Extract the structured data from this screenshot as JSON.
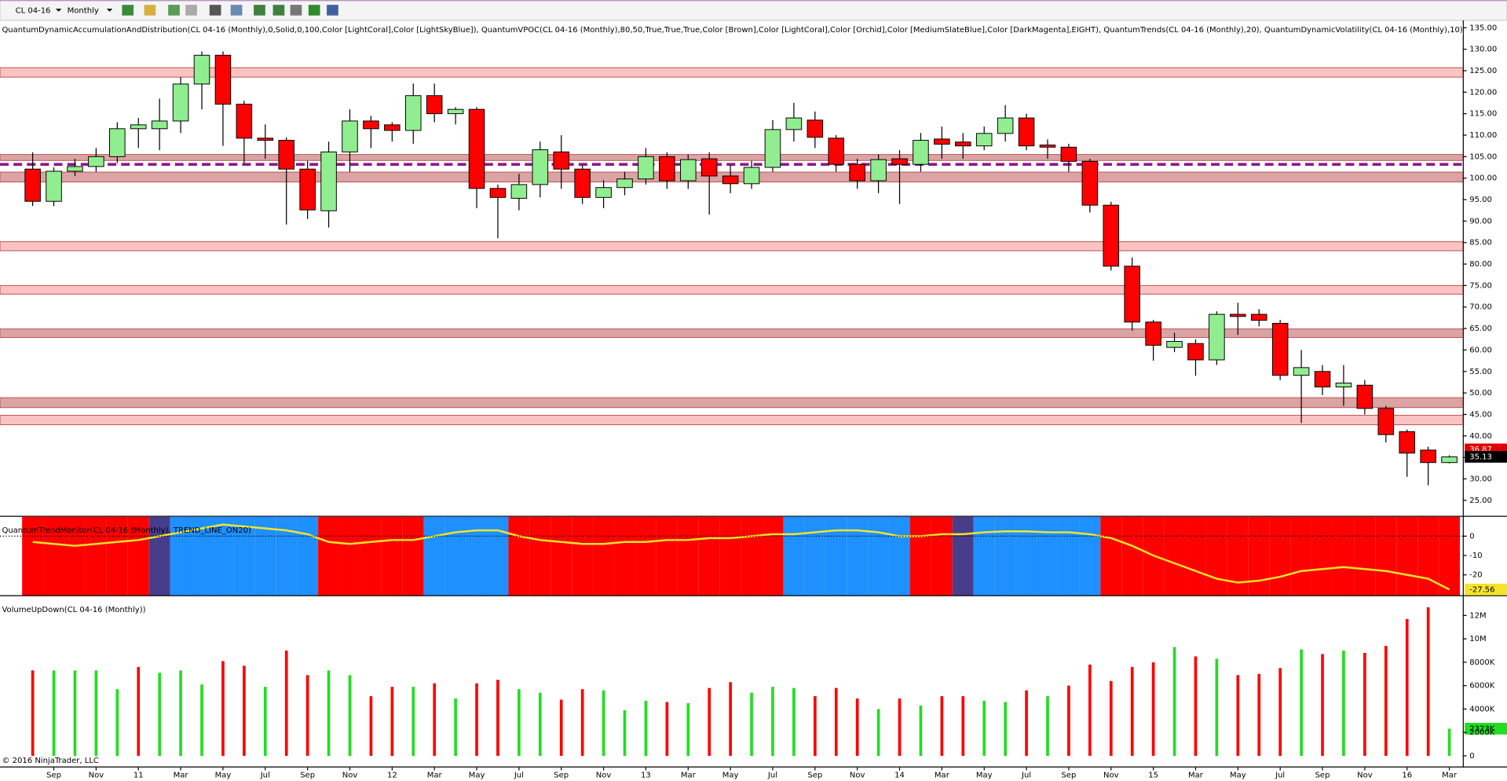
{
  "toolbar": {
    "instrument": "CL 04-16",
    "period": "Monthly"
  },
  "copyright": "© 2016 NinjaTrader, LLC",
  "chart_data": [
    {
      "type": "candlestick",
      "title": "QuantumDynamicAccumulationAndDistribution(CL 04-16 (Monthly),0,Solid,0,100,Color [LightCoral],Color [LightSkyBlue]), QuantumVPOC(CL 04-16 (Monthly),80,50,True,True,True,Color [Brown],Color [LightCoral],Color [Orchid],Color [MediumSlateBlue],Color [DarkMagenta],EIGHT), QuantumTrends(CL 04-16 (Monthly),20), QuantumDynamicVolatility(CL 04-16 (Monthly),10)",
      "categories": [
        null,
        "Sep",
        null,
        "Nov",
        null,
        "11",
        null,
        "Mar",
        null,
        "May",
        null,
        "Jul",
        null,
        "Sep",
        null,
        "Nov",
        null,
        "12",
        null,
        "Mar",
        null,
        "May",
        null,
        "Jul",
        null,
        "Sep",
        null,
        "Nov",
        null,
        "13",
        null,
        "Mar",
        null,
        "May",
        null,
        "Jul",
        null,
        "Sep",
        null,
        "Nov",
        null,
        "14",
        null,
        "Mar",
        null,
        "May",
        null,
        "Jul",
        null,
        "Sep",
        null,
        "Nov",
        null,
        "15",
        null,
        "Mar",
        null,
        "May",
        null,
        "Jul",
        null,
        "Sep",
        null,
        "Nov",
        null,
        "16",
        null,
        "Mar"
      ],
      "open": [
        102.1,
        94.6,
        101.6,
        102.7,
        105,
        111.5,
        111.5,
        113.3,
        121.9,
        128.6,
        117.2,
        109.3,
        108.8,
        102.1,
        92.4,
        106.1,
        113.3,
        112.4,
        111.1,
        119.2,
        115,
        116,
        97.6,
        95.3,
        98.5,
        106.1,
        102.1,
        95.5,
        97.8,
        99.8,
        105,
        99.4,
        104.5,
        100.5,
        98.7,
        102.5,
        111.3,
        113.5,
        109.3,
        103.2,
        99.4,
        104.5,
        103.2,
        109.1,
        108.4,
        107.5,
        110.4,
        114,
        107.7,
        107.2,
        103.9,
        93.7,
        79.5,
        66.5,
        60.6,
        61.5,
        57.7,
        68.3,
        68.3,
        66.2,
        54.1,
        55,
        51.4,
        51.8,
        46.4,
        41,
        36.7,
        33.8
      ],
      "high": [
        106,
        102.5,
        104.5,
        107,
        113,
        114,
        118.5,
        123.5,
        129.5,
        129.5,
        118,
        112.5,
        109.5,
        104,
        108.5,
        116,
        114.5,
        113,
        122,
        122,
        116.5,
        116.5,
        98.5,
        101,
        108.5,
        110,
        103,
        99.5,
        101.5,
        107,
        106,
        105.5,
        106,
        103,
        104,
        113.5,
        117.5,
        115.5,
        110,
        104.5,
        105.5,
        106.5,
        110.5,
        112,
        110.5,
        112,
        117,
        115,
        109,
        108,
        104.5,
        94.5,
        81.5,
        67,
        64,
        62.5,
        69,
        71,
        69.5,
        67,
        60,
        56.5,
        56.5,
        53,
        47,
        41.5,
        37.5,
        35.5
      ],
      "low": [
        93.5,
        93.5,
        100.5,
        101.5,
        103.5,
        107,
        106.5,
        110.5,
        116,
        107.5,
        103.5,
        104.5,
        89.2,
        90.5,
        88.5,
        101.5,
        107,
        108.5,
        108,
        113,
        112.5,
        93,
        86,
        92.5,
        95.5,
        97.5,
        94,
        93,
        96,
        98.5,
        97.5,
        97.5,
        91.5,
        96.5,
        97.5,
        101.5,
        108.5,
        107,
        101.5,
        97.5,
        96.5,
        94,
        101.5,
        104.5,
        104.5,
        106.5,
        108.5,
        106.5,
        104.5,
        101.5,
        92,
        78.5,
        64.5,
        57.5,
        59.5,
        54,
        56.5,
        63.5,
        65.5,
        53,
        43,
        49.5,
        47,
        45,
        38.5,
        30.5,
        28.5,
        33.6
      ],
      "close": [
        94.6,
        101.6,
        102.7,
        105,
        111.5,
        112.4,
        113.3,
        121.9,
        128.6,
        117.2,
        109.3,
        108.8,
        102.1,
        92.6,
        106.1,
        113.3,
        111.5,
        111.1,
        119.2,
        115,
        116,
        97.6,
        95.5,
        98.5,
        106.6,
        102.1,
        95.5,
        97.8,
        99.8,
        105,
        99.4,
        104.3,
        100.5,
        98.7,
        102.5,
        111.3,
        114,
        109.5,
        103.2,
        99.4,
        104.3,
        103.2,
        108.8,
        107.9,
        107.5,
        110.4,
        114,
        107.5,
        107.2,
        103.9,
        93.7,
        79.5,
        66.5,
        61.1,
        62,
        57.7,
        68.3,
        67.8,
        66.9,
        54.1,
        55.9,
        51.4,
        52.3,
        46.4,
        40.3,
        36,
        33.8,
        35.13
      ],
      "up_color": "#90ee90",
      "down_color": "#ff0000",
      "zones": [
        {
          "low": 123.5,
          "high": 125.7,
          "color": "#f8b8b8"
        },
        {
          "low": 104.1,
          "high": 105.5,
          "color": "#d49494"
        },
        {
          "low": 99.1,
          "high": 101.4,
          "color": "#d49494"
        },
        {
          "low": 83.1,
          "high": 85.2,
          "color": "#f8b8b8"
        },
        {
          "low": 73,
          "high": 75,
          "color": "#f8b8b8"
        },
        {
          "low": 62.9,
          "high": 64.9,
          "color": "#d49494"
        },
        {
          "low": 46.6,
          "high": 48.9,
          "color": "#d49494"
        },
        {
          "low": 42.6,
          "high": 44.8,
          "color": "#f8b8b8"
        }
      ],
      "vpoc": 103.2,
      "vpoc_color": "#8b1a8b",
      "markers": [
        36.87
      ],
      "marker_color": "#e00000",
      "ylim": [
        21.4,
        136.5
      ],
      "yticks": [
        {
          "value": 25,
          "label": "25.00"
        },
        {
          "value": 30,
          "label": "30.00"
        },
        {
          "value": 35,
          "label": "35.00"
        },
        {
          "value": 40,
          "label": "40.00"
        },
        {
          "value": 45,
          "label": "45.00"
        },
        {
          "value": 50,
          "label": "50.00"
        },
        {
          "value": 55,
          "label": "55.00"
        },
        {
          "value": 60,
          "label": "60.00"
        },
        {
          "value": 65,
          "label": "65.00"
        },
        {
          "value": 70,
          "label": "70.00"
        },
        {
          "value": 75,
          "label": "75.00"
        },
        {
          "value": 80,
          "label": "80.00"
        },
        {
          "value": 85,
          "label": "85.00"
        },
        {
          "value": 90,
          "label": "90.00"
        },
        {
          "value": 95,
          "label": "95.00"
        },
        {
          "value": 100,
          "label": "100.00"
        },
        {
          "value": 105,
          "label": "105.00"
        },
        {
          "value": 110,
          "label": "110.00"
        },
        {
          "value": 115,
          "label": "115.00"
        },
        {
          "value": 120,
          "label": "120.00"
        },
        {
          "value": 125,
          "label": "125.00"
        },
        {
          "value": 130,
          "label": "130.00"
        },
        {
          "value": 135,
          "label": "135.00"
        }
      ]
    },
    {
      "type": "line",
      "title": "QuantumTrendMonitor(CL 04-16 (Monthly), TREND_LINE_ON20)",
      "values": [
        -3,
        -4,
        -5,
        -4,
        -3,
        -2,
        0,
        2,
        4,
        6,
        5,
        4,
        3,
        1,
        -3,
        -4,
        -3,
        -2,
        -2,
        0,
        2,
        3,
        3,
        0,
        -2,
        -3,
        -4,
        -4,
        -3,
        -3,
        -2,
        -2,
        -1,
        -1,
        0,
        1,
        1,
        2,
        3,
        3,
        2,
        0,
        0,
        1,
        1,
        2,
        2.5,
        2.5,
        2,
        2,
        1,
        -1,
        -5,
        -10,
        -14,
        -18,
        -22,
        -24,
        -23,
        -21,
        -18,
        -17,
        -16,
        -17,
        -18,
        -20,
        -22,
        -27.56
      ],
      "color": "#f5e42a",
      "bar_colors": [
        "#ff0000",
        "#ff0000",
        "#ff0000",
        "#ff0000",
        "#ff0000",
        "#ff0000",
        "#483d8b",
        "#1e90ff",
        "#1e90ff",
        "#1e90ff",
        "#1e90ff",
        "#1e90ff",
        "#1e90ff",
        "#1e90ff",
        "#ff0000",
        "#ff0000",
        "#ff0000",
        "#ff0000",
        "#ff0000",
        "#1e90ff",
        "#1e90ff",
        "#1e90ff",
        "#1e90ff",
        "#ff0000",
        "#ff0000",
        "#ff0000",
        "#ff0000",
        "#ff0000",
        "#ff0000",
        "#ff0000",
        "#ff0000",
        "#ff0000",
        "#ff0000",
        "#ff0000",
        "#ff0000",
        "#ff0000",
        "#1e90ff",
        "#1e90ff",
        "#1e90ff",
        "#1e90ff",
        "#1e90ff",
        "#1e90ff",
        "#ff0000",
        "#ff0000",
        "#483d8b",
        "#1e90ff",
        "#1e90ff",
        "#1e90ff",
        "#1e90ff",
        "#1e90ff",
        "#1e90ff",
        "#ff0000",
        "#ff0000",
        "#ff0000",
        "#ff0000",
        "#ff0000",
        "#ff0000",
        "#ff0000",
        "#ff0000",
        "#ff0000",
        "#ff0000",
        "#ff0000",
        "#ff0000",
        "#ff0000",
        "#ff0000",
        "#ff0000",
        "#ff0000",
        "#ff0000"
      ],
      "ylim": [
        -30.5,
        10
      ],
      "yticks": [
        0,
        -10,
        -20
      ]
    },
    {
      "type": "bar",
      "title": "VolumeUpDown(CL 04-16 (Monthly))",
      "values": [
        7300000,
        7300000,
        7300000,
        7300000,
        5700000,
        7600000,
        7100000,
        7300000,
        6100000,
        8100000,
        7700000,
        5900000,
        9000000,
        6900000,
        7300000,
        6900000,
        5100000,
        5900000,
        5900000,
        6200000,
        4900000,
        6200000,
        6500000,
        5700000,
        5400000,
        4800000,
        5700000,
        5600000,
        3900000,
        4700000,
        4600000,
        4500000,
        5800000,
        6300000,
        5400000,
        5900000,
        5800000,
        5100000,
        5800000,
        4900000,
        4000000,
        4900000,
        4300000,
        5100000,
        5100000,
        4700000,
        4600000,
        5600000,
        5100000,
        6000000,
        7800000,
        6400000,
        7600000,
        8000000,
        9300000,
        8500000,
        8300000,
        6900000,
        7000000,
        7500000,
        9100000,
        8700000,
        9000000,
        8800000,
        9400000,
        11700000,
        12700000,
        2323000
      ],
      "value_labels": [
        null,
        null,
        null,
        null,
        null,
        null,
        null,
        null,
        null,
        null,
        null,
        null,
        null,
        null,
        null,
        null,
        null,
        null,
        null,
        null,
        null,
        null,
        null,
        null,
        null,
        null,
        null,
        null,
        null,
        null,
        null,
        null,
        null,
        null,
        null,
        null,
        null,
        null,
        null,
        null,
        null,
        null,
        null,
        null,
        null,
        null,
        null,
        null,
        null,
        null,
        null,
        null,
        null,
        null,
        null,
        null,
        null,
        null,
        null,
        null,
        null,
        null,
        null,
        null,
        null,
        null,
        null,
        "2323K"
      ],
      "colors": [
        "#ff0000",
        "#22dd22",
        "#22dd22",
        "#22dd22",
        "#22dd22",
        "#ff0000",
        "#22dd22",
        "#22dd22",
        "#22dd22",
        "#ff0000",
        "#ff0000",
        "#22dd22",
        "#ff0000",
        "#ff0000",
        "#22dd22",
        "#22dd22",
        "#ff0000",
        "#ff0000",
        "#22dd22",
        "#ff0000",
        "#22dd22",
        "#ff0000",
        "#ff0000",
        "#22dd22",
        "#22dd22",
        "#ff0000",
        "#ff0000",
        "#22dd22",
        "#22dd22",
        "#22dd22",
        "#ff0000",
        "#22dd22",
        "#ff0000",
        "#ff0000",
        "#22dd22",
        "#22dd22",
        "#22dd22",
        "#ff0000",
        "#ff0000",
        "#ff0000",
        "#22dd22",
        "#ff0000",
        "#22dd22",
        "#ff0000",
        "#ff0000",
        "#22dd22",
        "#22dd22",
        "#ff0000",
        "#22dd22",
        "#ff0000",
        "#ff0000",
        "#ff0000",
        "#ff0000",
        "#ff0000",
        "#22dd22",
        "#ff0000",
        "#22dd22",
        "#ff0000",
        "#ff0000",
        "#ff0000",
        "#22dd22",
        "#ff0000",
        "#22dd22",
        "#ff0000",
        "#ff0000",
        "#ff0000",
        "#ff0000",
        "#22dd22"
      ],
      "ylim": [
        -910000,
        13320000
      ],
      "yticks": [
        0,
        {
          "value": 2000000,
          "label": "2000K"
        },
        {
          "value": 4000000,
          "label": "4000K"
        },
        {
          "value": 6000000,
          "label": "6000K"
        },
        {
          "value": 8000000,
          "label": "8000K"
        },
        {
          "value": 10000000,
          "label": "10M"
        },
        {
          "value": 12000000,
          "label": "12M"
        }
      ]
    }
  ]
}
